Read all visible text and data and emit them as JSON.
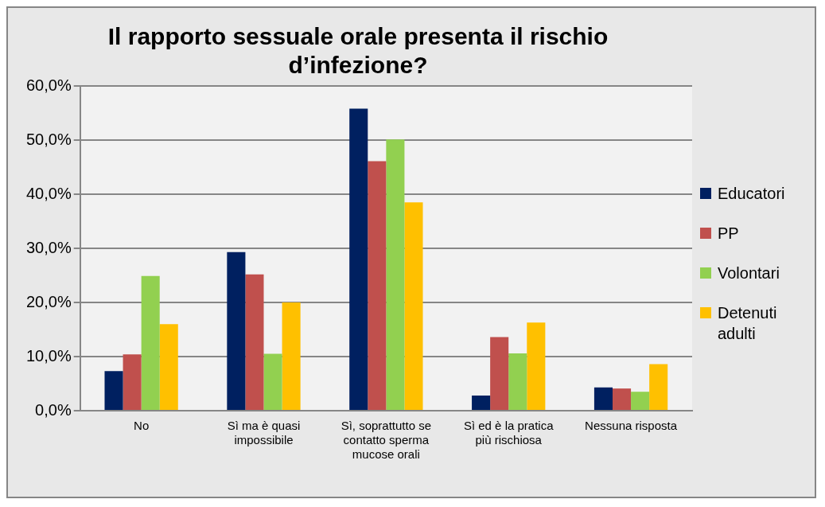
{
  "chart_data": {
    "type": "bar",
    "title": "Il rapporto sessuale orale presenta il rischio d’infezione?",
    "categories": [
      "No",
      "Sì ma è quasi impossibile",
      "Sì, soprattutto se contatto sperma mucose orali",
      "Sì ed è la pratica più rischiosa",
      "Nessuna risposta"
    ],
    "series": [
      {
        "name": "Educatori",
        "color": "#002060",
        "values": [
          7.3,
          29.3,
          55.8,
          2.8,
          4.3
        ]
      },
      {
        "name": "PP",
        "color": "#c0504d",
        "values": [
          10.4,
          25.2,
          46.1,
          13.6,
          4.1
        ]
      },
      {
        "name": "Volontari",
        "color": "#92d050",
        "values": [
          24.9,
          10.5,
          50.1,
          10.6,
          3.5
        ]
      },
      {
        "name": "Detenuti adulti",
        "color": "#ffc000",
        "values": [
          16.0,
          20.0,
          38.5,
          16.3,
          8.6
        ]
      }
    ],
    "ylim": [
      0,
      60
    ],
    "yticks": [
      {
        "value": 0,
        "label": "0,0%"
      },
      {
        "value": 10,
        "label": "10,0%"
      },
      {
        "value": 20,
        "label": "20,0%"
      },
      {
        "value": 30,
        "label": "30,0%"
      },
      {
        "value": 40,
        "label": "40,0%"
      },
      {
        "value": 50,
        "label": "50,0%"
      },
      {
        "value": 60,
        "label": "60,0%"
      }
    ],
    "grid": "y",
    "legend": "right"
  }
}
